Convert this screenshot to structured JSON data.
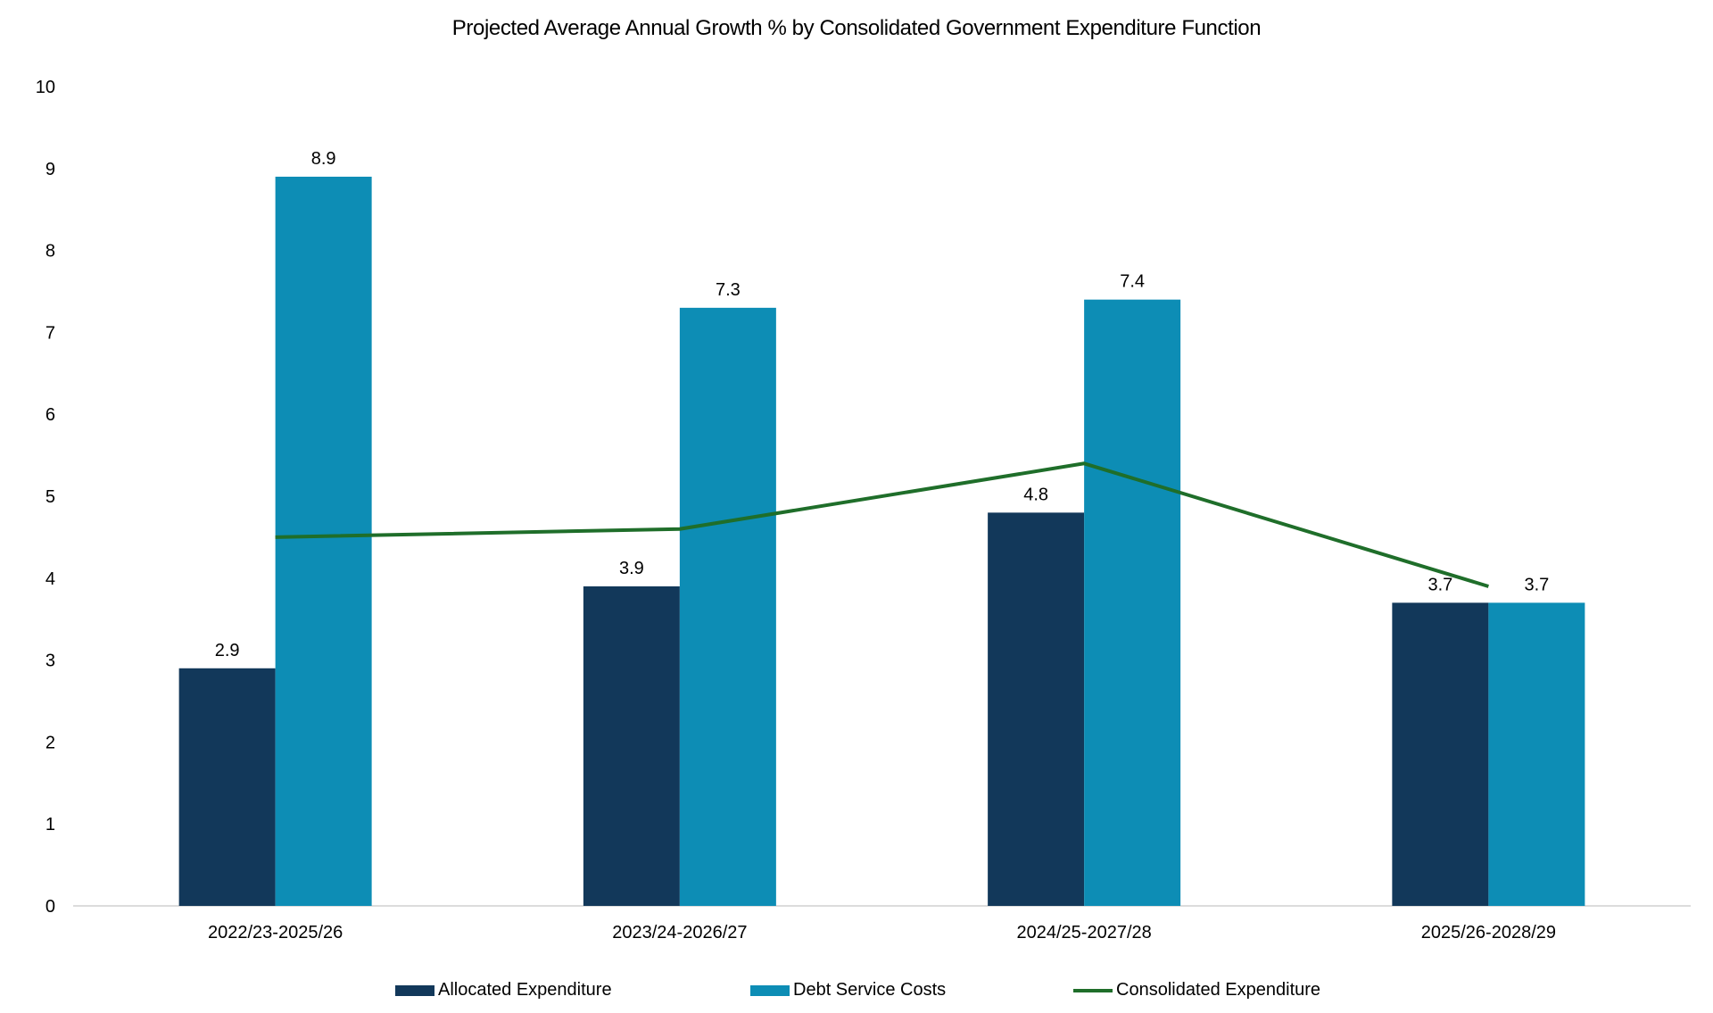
{
  "chart_data": {
    "type": "bar",
    "title": "Projected Average Annual Growth % by Consolidated Government Expenditure Function",
    "xlabel": "",
    "ylabel": "",
    "ylim": [
      0,
      10
    ],
    "yticks": [
      "0",
      "1",
      "2",
      "3",
      "4",
      "5",
      "6",
      "7",
      "8",
      "9",
      "10"
    ],
    "grid": false,
    "legend_position": "bottom",
    "categories": [
      "2022/23-2025/26",
      "2023/24-2026/27",
      "2024/25-2027/28",
      "2025/26-2028/29"
    ],
    "series": [
      {
        "name": "Allocated Expenditure",
        "type": "bar",
        "color": "#12385a",
        "values": [
          2.9,
          3.9,
          4.8,
          3.7
        ],
        "labels": [
          "2.9",
          "3.9",
          "4.8",
          "3.7"
        ]
      },
      {
        "name": "Debt Service Costs",
        "type": "bar",
        "color": "#0d8db5",
        "values": [
          8.9,
          7.3,
          7.4,
          3.7
        ],
        "labels": [
          "8.9",
          "7.3",
          "7.4",
          "3.7"
        ]
      },
      {
        "name": "Consolidated Expenditure",
        "type": "line",
        "color": "#1f6e2a",
        "values": [
          4.5,
          4.6,
          5.4,
          3.9
        ]
      }
    ]
  }
}
